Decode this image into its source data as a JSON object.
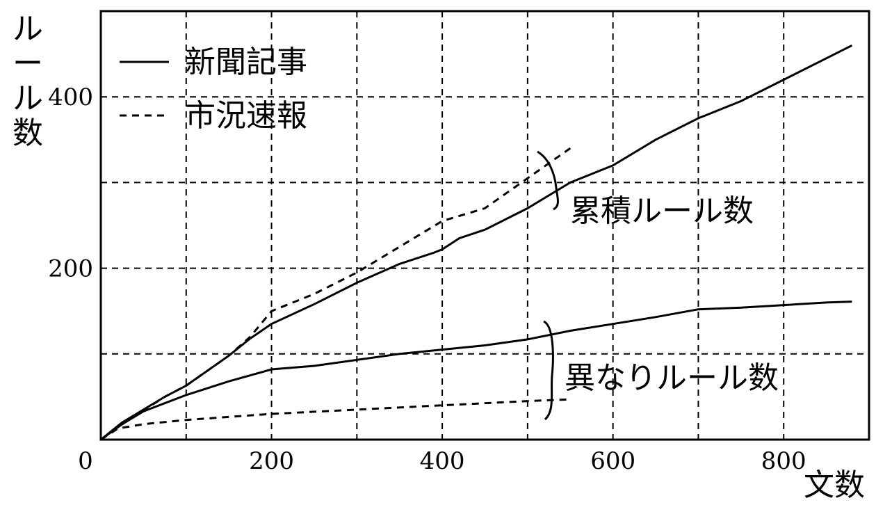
{
  "chart_data": {
    "type": "line",
    "xlabel": "文数",
    "ylabel": "ルール数",
    "xlim": [
      0,
      900
    ],
    "ylim": [
      0,
      500
    ],
    "x_ticks": [
      0,
      200,
      400,
      600,
      800
    ],
    "y_ticks": [
      200,
      400
    ],
    "x_grid": [
      100,
      200,
      300,
      400,
      500,
      600,
      700,
      800
    ],
    "y_grid": [
      100,
      200,
      300,
      400
    ],
    "grid": true,
    "legend": {
      "placement": "top-left",
      "entries": [
        {
          "label": "新聞記事",
          "style": "solid"
        },
        {
          "label": "市況速報",
          "style": "dashed"
        }
      ]
    },
    "annotations": [
      {
        "text": "累積ルール数",
        "refers_to": "cumulative"
      },
      {
        "text": "異なりルール数",
        "refers_to": "distinct"
      }
    ],
    "series": [
      {
        "name": "新聞記事",
        "group": "cumulative",
        "style": "solid",
        "x": [
          0,
          25,
          75,
          100,
          150,
          175,
          200,
          250,
          300,
          350,
          390,
          400,
          420,
          450,
          500,
          550,
          600,
          650,
          700,
          750,
          800,
          850,
          880
        ],
        "y": [
          0,
          20,
          50,
          63,
          98,
          118,
          135,
          158,
          183,
          205,
          218,
          222,
          235,
          245,
          270,
          300,
          320,
          350,
          375,
          395,
          420,
          445,
          460
        ]
      },
      {
        "name": "市況速報",
        "group": "cumulative",
        "style": "dashed",
        "x": [
          0,
          25,
          75,
          100,
          150,
          175,
          200,
          250,
          300,
          350,
          400,
          450,
          500,
          550
        ],
        "y": [
          0,
          18,
          50,
          63,
          98,
          120,
          150,
          170,
          195,
          225,
          255,
          270,
          305,
          340
        ]
      },
      {
        "name": "新聞記事",
        "group": "distinct",
        "style": "solid",
        "x": [
          0,
          25,
          50,
          100,
          150,
          200,
          250,
          300,
          350,
          400,
          450,
          500,
          550,
          600,
          650,
          700,
          750,
          800,
          850,
          880
        ],
        "y": [
          0,
          18,
          33,
          52,
          68,
          82,
          86,
          93,
          100,
          105,
          110,
          117,
          127,
          135,
          143,
          152,
          154,
          157,
          160,
          161
        ]
      },
      {
        "name": "市況速報",
        "group": "distinct",
        "style": "dashed",
        "x": [
          0,
          20,
          50,
          100,
          200,
          300,
          400,
          500,
          550
        ],
        "y": [
          0,
          13,
          18,
          23,
          30,
          35,
          40,
          45,
          47
        ]
      }
    ]
  }
}
